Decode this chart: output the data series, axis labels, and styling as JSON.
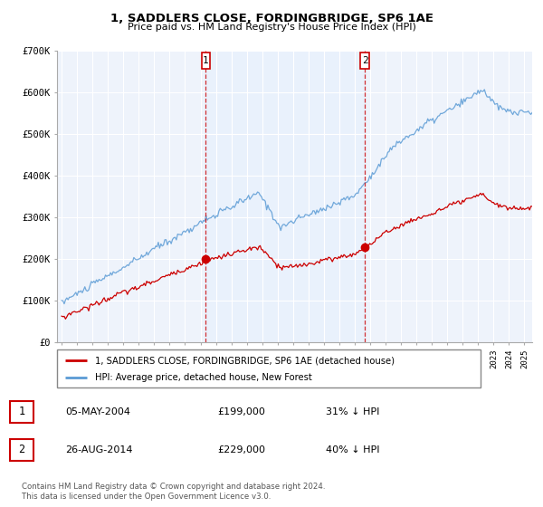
{
  "title": "1, SADDLERS CLOSE, FORDINGBRIDGE, SP6 1AE",
  "subtitle": "Price paid vs. HM Land Registry's House Price Index (HPI)",
  "legend_line1": "1, SADDLERS CLOSE, FORDINGBRIDGE, SP6 1AE (detached house)",
  "legend_line2": "HPI: Average price, detached house, New Forest",
  "table_rows": [
    {
      "num": "1",
      "date": "05-MAY-2004",
      "price": "£199,000",
      "pct": "31% ↓ HPI"
    },
    {
      "num": "2",
      "date": "26-AUG-2014",
      "price": "£229,000",
      "pct": "40% ↓ HPI"
    }
  ],
  "footnote": "Contains HM Land Registry data © Crown copyright and database right 2024.\nThis data is licensed under the Open Government Licence v3.0.",
  "sale1_x": 2004.35,
  "sale1_y": 199000,
  "sale2_x": 2014.65,
  "sale2_y": 229000,
  "vline1_x": 2004.35,
  "vline2_x": 2014.65,
  "red_color": "#cc0000",
  "blue_color": "#5b9bd5",
  "shade_color": "#ddeeff",
  "dot_color": "#cc0000",
  "ylim": [
    0,
    700000
  ],
  "yticks": [
    0,
    100000,
    200000,
    300000,
    400000,
    500000,
    600000,
    700000
  ],
  "ytick_labels": [
    "£0",
    "£100K",
    "£200K",
    "£300K",
    "£400K",
    "£500K",
    "£600K",
    "£700K"
  ],
  "xlim_start": 1994.7,
  "xlim_end": 2025.5,
  "hpi_seed": 10,
  "red_seed": 20,
  "bg_color": "#eef3fb"
}
